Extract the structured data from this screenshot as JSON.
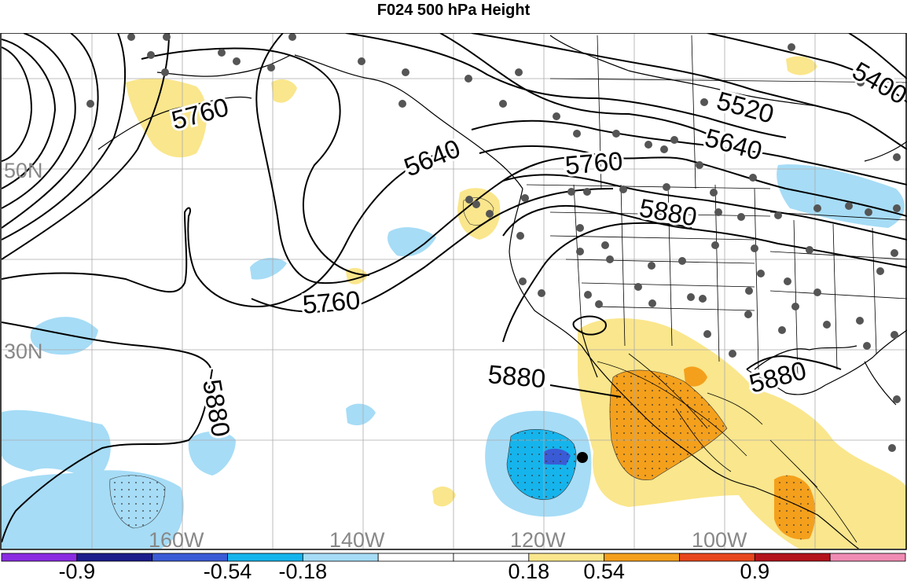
{
  "title": "F024 500 hPa Height",
  "lat_labels": [
    "50N",
    "30N"
  ],
  "lon_labels": [
    "160W",
    "140W",
    "120W",
    "100W"
  ],
  "contour_labels": [
    "5400",
    "5520",
    "5640",
    "5640",
    "5760",
    "5760",
    "5760",
    "5760",
    "5880",
    "5880",
    "5880",
    "5880"
  ],
  "colorbar": {
    "colors": [
      "#8a2be2",
      "#1c1c8c",
      "#3a5bd6",
      "#16b4ec",
      "#a6dcf6",
      "#ffffff",
      "#ffffff",
      "#fae68c",
      "#f4a01c",
      "#e8461c",
      "#b4141c",
      "#f08cb4"
    ],
    "labels": [
      "-0.9",
      "-0.54",
      "-0.18",
      "0.18",
      "0.54",
      "0.9"
    ]
  },
  "colors": {
    "stations": "#555555",
    "point_marker": "#000000",
    "neg_light": "#a6dcf6",
    "neg_mid": "#16b4ec",
    "neg_dark": "#3a5bd6",
    "pos_light": "#fae68c",
    "pos_mid": "#f4a01c"
  }
}
